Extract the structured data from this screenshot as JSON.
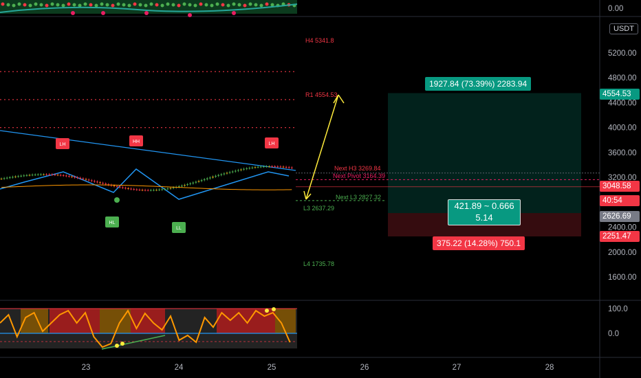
{
  "chart_data": {
    "type": "candlestick",
    "ylim": [
      1200,
      5600
    ],
    "price_axis_ticks": [
      "5200.00",
      "4800.00",
      "4400.00",
      "4000.00",
      "3600.00",
      "3200.00",
      "2800.00",
      "2400.00",
      "2000.00",
      "1600.00"
    ],
    "x_tick_labels": [
      "23",
      "24",
      "25",
      "26",
      "27",
      "28"
    ],
    "currency_label": "USDT",
    "pivot_levels": [
      {
        "label": "H4 5341.8",
        "value": 5341.8,
        "color": "#f23645"
      },
      {
        "label": "R1 4554.53",
        "value": 4554.53,
        "color": "#f23645"
      },
      {
        "label": "Next H3 3269.84",
        "value": 3269.84,
        "color": "#f23645"
      },
      {
        "label": "Next Pivot 3164.39",
        "value": 3164.39,
        "color": "#e91e63"
      },
      {
        "label": "Next L3 2827.32",
        "value": 2827.32,
        "color": "#4caf50"
      },
      {
        "label": "L3 2637.29",
        "value": 2637.29,
        "color": "#4caf50"
      },
      {
        "label": "L4 1735.78",
        "value": 1735.78,
        "color": "#4caf50"
      }
    ],
    "dotted_resistance_levels": [
      4900,
      4450,
      4000
    ],
    "pattern_labels": [
      {
        "text": "LH",
        "type": "high"
      },
      {
        "text": "HH",
        "type": "high"
      },
      {
        "text": "LH",
        "type": "high"
      },
      {
        "text": "HL",
        "type": "low"
      },
      {
        "text": "LL",
        "type": "low"
      }
    ],
    "price_labels": [
      {
        "text": "4554.53",
        "value": 4554.53,
        "color": "#089981"
      },
      {
        "text": "3048.58",
        "value": 3048.58,
        "color": "#f23645"
      },
      {
        "text": "40:54",
        "value": 2820,
        "color": "#f23645"
      },
      {
        "text": "2626.69",
        "value": 2626.69,
        "color": "#787b86"
      },
      {
        "text": "2251.47",
        "value": 2251.47,
        "color": "#f23645"
      }
    ],
    "position_tool": {
      "entry": 2626.69,
      "target": 4554.53,
      "stop": 2251.47,
      "target_label": "1927.84 (73.39%) 2283.94",
      "center_label_1": "421.89 ~ 0.666",
      "center_label_2": "5.14",
      "stop_label": "375.22 (14.28%) 750.1"
    },
    "oscillator": {
      "ylim": [
        -45,
        110
      ],
      "ticks": [
        "100.0",
        "0.0"
      ]
    },
    "top_axis_label": "0.00"
  }
}
